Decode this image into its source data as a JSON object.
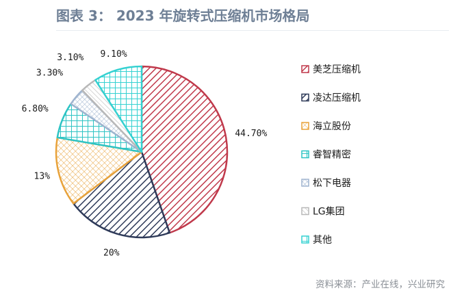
{
  "title": "图表 3：  2023 年旋转式压缩机市场格局",
  "source": "资料来源：产业在线，兴业研究",
  "chart_data": {
    "type": "pie",
    "categories": [
      "美芝压缩机",
      "凌达压缩机",
      "海立股份",
      "睿智精密",
      "松下电器",
      "LG集团",
      "其他"
    ],
    "values": [
      44.7,
      20,
      13,
      6.8,
      3.3,
      3.1,
      9.1
    ],
    "labels": [
      "44.70%",
      "20%",
      "13%",
      "6.80%",
      "3.30%",
      "3.10%",
      "9.10%"
    ],
    "colors": [
      "#c0394b",
      "#2e3a59",
      "#e8a23a",
      "#2ec4c4",
      "#9fb4cf",
      "#b8b8b8",
      "#34d1d1"
    ],
    "legend_position": "right"
  }
}
